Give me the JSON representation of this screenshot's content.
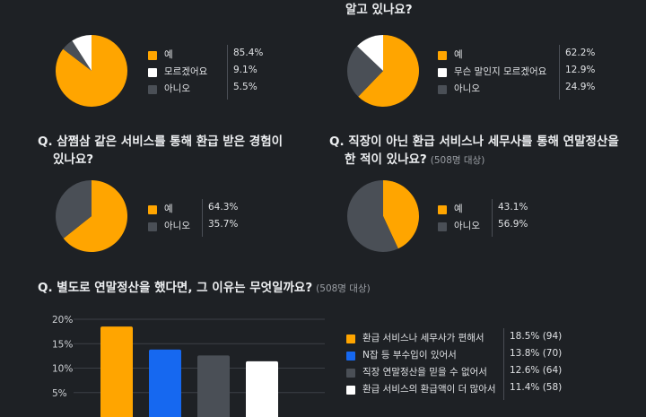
{
  "colors": {
    "orange": "#ffa500",
    "white": "#ffffff",
    "gray": "#4a4f56",
    "blue": "#1668f0",
    "bg": "#1e2125"
  },
  "questions": {
    "q1": {
      "legend": [
        {
          "label": "예",
          "value": "85.4%",
          "color": "#ffa500"
        },
        {
          "label": "모르겠어요",
          "value": "9.1%",
          "color": "#ffffff"
        },
        {
          "label": "아니오",
          "value": "5.5%",
          "color": "#4a4f56"
        }
      ]
    },
    "q2": {
      "title": "알고 있나요?",
      "legend": [
        {
          "label": "예",
          "value": "62.2%",
          "color": "#ffa500"
        },
        {
          "label": "무슨 말인지 모르겠어요",
          "value": "12.9%",
          "color": "#ffffff"
        },
        {
          "label": "아니오",
          "value": "24.9%",
          "color": "#4a4f56"
        }
      ]
    },
    "q3": {
      "title_line1": "Q. 삼쩜삼 같은 서비스를 통해 환급 받은 경험이",
      "title_line2": "있나요?",
      "legend": [
        {
          "label": "예",
          "value": "64.3%",
          "color": "#ffa500"
        },
        {
          "label": "아니오",
          "value": "35.7%",
          "color": "#4a4f56"
        }
      ]
    },
    "q4": {
      "title_line1": "Q. 직장이 아닌 환급 서비스나 세무사를 통해 연말정산을",
      "title_line2": "한 적이 있나요?",
      "sub": "(508명 대상)",
      "legend": [
        {
          "label": "예",
          "value": "43.1%",
          "color": "#ffa500"
        },
        {
          "label": "아니오",
          "value": "56.9%",
          "color": "#4a4f56"
        }
      ]
    },
    "q5": {
      "title": "Q. 별도로 연말정산을 했다면, 그 이유는 무엇일까요?",
      "sub": "(508명 대상)",
      "legend": [
        {
          "label": "환급 서비스나 세무사가 편해서",
          "value": "18.5%",
          "count": "(94)",
          "color": "#ffa500"
        },
        {
          "label": "N잡 등 부수입이 있어서",
          "value": "13.8%",
          "count": "(70)",
          "color": "#1668f0"
        },
        {
          "label": "직장 연말정산을 믿을 수 없어서",
          "value": "12.6%",
          "count": "(64)",
          "color": "#4a4f56"
        },
        {
          "label": "환급 서비스의 환급액이 더 많아서",
          "value": "11.4%",
          "count": "(58)",
          "color": "#ffffff"
        }
      ]
    }
  },
  "chart_data": [
    {
      "type": "pie",
      "categories": [
        "예",
        "모르겠어요",
        "아니오"
      ],
      "values": [
        85.4,
        9.1,
        5.5
      ]
    },
    {
      "type": "pie",
      "title": "알고 있나요?",
      "categories": [
        "예",
        "무슨 말인지 모르겠어요",
        "아니오"
      ],
      "values": [
        62.2,
        12.9,
        24.9
      ]
    },
    {
      "type": "pie",
      "title": "Q. 삼쩜삼 같은 서비스를 통해 환급 받은 경험이 있나요?",
      "categories": [
        "예",
        "아니오"
      ],
      "values": [
        64.3,
        35.7
      ]
    },
    {
      "type": "pie",
      "title": "Q. 직장이 아닌 환급 서비스나 세무사를 통해 연말정산을 한 적이 있나요?",
      "categories": [
        "예",
        "아니오"
      ],
      "values": [
        43.1,
        56.9
      ]
    },
    {
      "type": "bar",
      "title": "Q. 별도로 연말정산을 했다면, 그 이유는 무엇일까요?",
      "categories": [
        "환급 서비스나 세무사가 편해서",
        "N잡 등 부수입이 있어서",
        "직장 연말정산을 믿을 수 없어서",
        "환급 서비스의 환급액이 더 많아서"
      ],
      "values": [
        18.5,
        13.8,
        12.6,
        11.4
      ],
      "y_ticks": [
        "20%",
        "15%",
        "10%",
        "5%"
      ],
      "ylim": [
        0,
        20
      ],
      "grid": true
    }
  ]
}
